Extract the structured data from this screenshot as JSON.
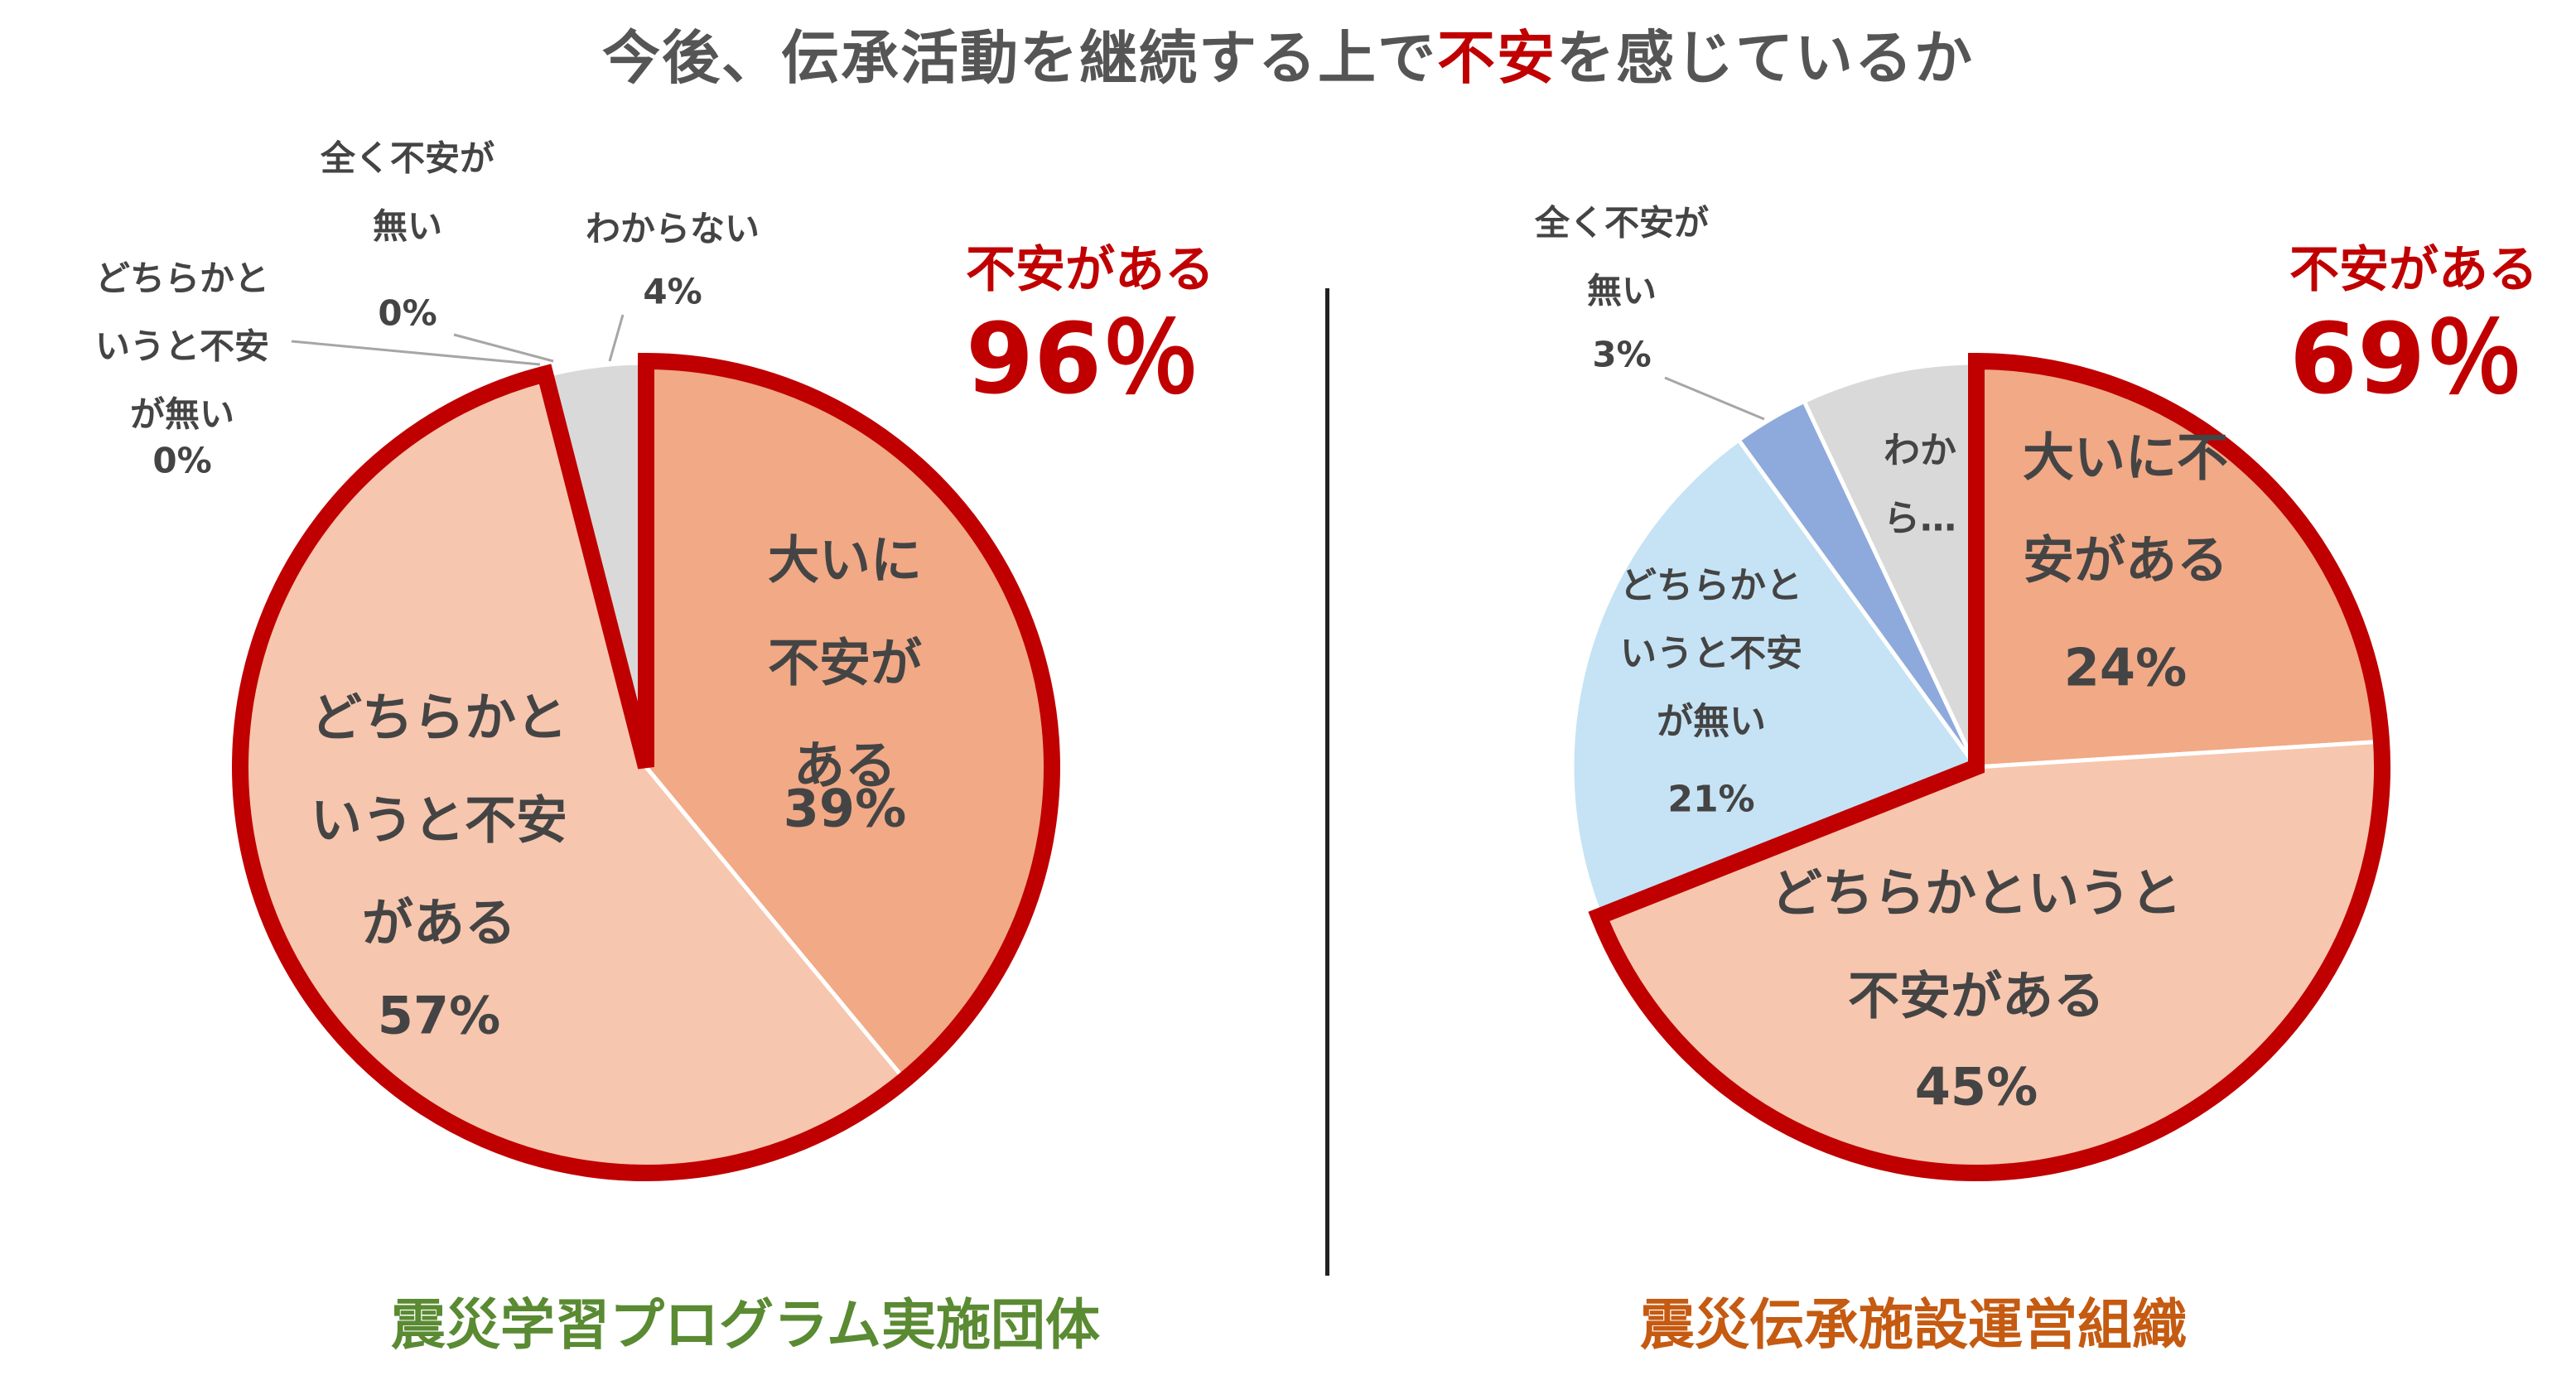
{
  "title": {
    "prefix": "今後、伝承活動を継続する上で",
    "highlight": "不安",
    "suffix": "を感じているか"
  },
  "colors": {
    "accent_red": "#c00000",
    "left_label": "#5a8a32",
    "right_label": "#c55a11",
    "very_anxious": "#f2a986",
    "somewhat_anxious": "#f7c6ae",
    "somewhat_not": "#c5e3f4",
    "not_at_all": "#8eaadc",
    "unknown": "#d9d9d9"
  },
  "callouts": [
    {
      "title": "不安がある",
      "value": "96％"
    },
    {
      "title": "不安がある",
      "value": "69％"
    }
  ],
  "chart_data": [
    {
      "type": "pie",
      "title": "震災学習プログラム実施団体",
      "slices": [
        {
          "name": "大いに不安がある",
          "value": 39,
          "label_lines": [
            "大いに",
            "不安が",
            "ある"
          ],
          "pct_label": "39%"
        },
        {
          "name": "どちらかというと不安がある",
          "value": 57,
          "label_lines": [
            "どちらかと",
            "いうと不安",
            "がある"
          ],
          "pct_label": "57%"
        },
        {
          "name": "どちらかというと不安が無い",
          "value": 0,
          "label_lines": [
            "どちらかと",
            "いうと不安",
            "が無い"
          ],
          "pct_label": "0%"
        },
        {
          "name": "全く不安が無い",
          "value": 0,
          "label_lines": [
            "全く不安が",
            "無い"
          ],
          "pct_label": "0%"
        },
        {
          "name": "わからない",
          "value": 4,
          "label_lines": [
            "わからない"
          ],
          "pct_label": "4%"
        }
      ],
      "highlight_group": [
        "大いに不安がある",
        "どちらかというと不安がある"
      ]
    },
    {
      "type": "pie",
      "title": "震災伝承施設運営組織",
      "slices": [
        {
          "name": "大いに不安がある",
          "value": 24,
          "label_lines": [
            "大いに不",
            "安がある"
          ],
          "pct_label": "24%"
        },
        {
          "name": "どちらかというと不安がある",
          "value": 45,
          "label_lines": [
            "どちらかというと",
            "不安がある"
          ],
          "pct_label": "45%"
        },
        {
          "name": "どちらかというと不安が無い",
          "value": 21,
          "label_lines": [
            "どちらかと",
            "いうと不安",
            "が無い"
          ],
          "pct_label": "21%"
        },
        {
          "name": "全く不安が無い",
          "value": 3,
          "label_lines": [
            "全く不安が",
            "無い"
          ],
          "pct_label": "3%"
        },
        {
          "name": "わからない",
          "value": 7,
          "label_lines": [
            "わか",
            "ら…"
          ],
          "pct_label": ""
        }
      ],
      "highlight_group": [
        "大いに不安がある",
        "どちらかというと不安がある"
      ]
    }
  ]
}
